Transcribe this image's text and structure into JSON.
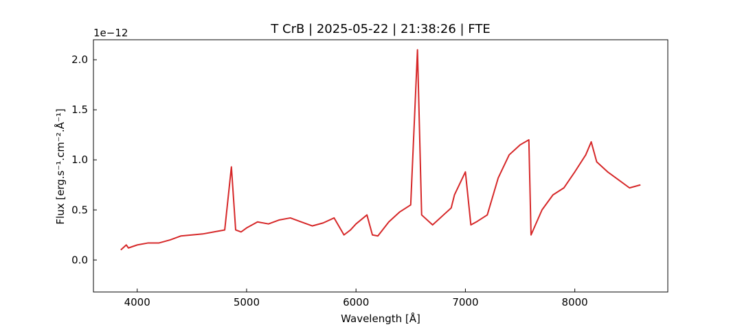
{
  "chart_data": {
    "type": "line",
    "title": "T CrB | 2025-05-22 | 21:38:26 | FTE",
    "xlabel": "Wavelength [Å]",
    "ylabel": "Flux [erg.s⁻¹.cm⁻².Å⁻¹]",
    "y_offset_label": "1e−12",
    "xlim": [
      3600,
      8850
    ],
    "ylim": [
      -3.2e-13,
      2.2e-12
    ],
    "x_ticks": [
      4000,
      5000,
      6000,
      7000,
      8000
    ],
    "x_tick_labels": [
      "4000",
      "5000",
      "6000",
      "7000",
      "8000"
    ],
    "y_ticks": [
      0.0,
      0.5,
      1.0,
      1.5,
      2.0
    ],
    "y_tick_labels": [
      "0.0",
      "0.5",
      "1.0",
      "1.5",
      "2.0"
    ],
    "grid": false,
    "legend": "none",
    "series": [
      {
        "color": "#d62728",
        "x": [
          3850,
          3900,
          3920,
          4000,
          4100,
          4200,
          4300,
          4400,
          4500,
          4600,
          4700,
          4800,
          4861,
          4900,
          4950,
          5000,
          5100,
          5200,
          5300,
          5400,
          5500,
          5600,
          5700,
          5800,
          5890,
          5950,
          6000,
          6100,
          6150,
          6200,
          6300,
          6400,
          6500,
          6562,
          6600,
          6700,
          6800,
          6870,
          6900,
          7000,
          7050,
          7100,
          7200,
          7300,
          7400,
          7500,
          7580,
          7600,
          7700,
          7800,
          7900,
          8000,
          8100,
          8150,
          8200,
          8300,
          8400,
          8500,
          8600
        ],
        "y": [
          1e-13,
          1.5e-13,
          1.2e-13,
          1.5e-13,
          1.7e-13,
          1.7e-13,
          2e-13,
          2.4e-13,
          2.5e-13,
          2.6e-13,
          2.8e-13,
          3e-13,
          9.3e-13,
          3e-13,
          2.8e-13,
          3.2e-13,
          3.8e-13,
          3.6e-13,
          4e-13,
          4.2e-13,
          3.8e-13,
          3.4e-13,
          3.7e-13,
          4.2e-13,
          2.5e-13,
          3e-13,
          3.6e-13,
          4.5e-13,
          2.5e-13,
          2.4e-13,
          3.8e-13,
          4.8e-13,
          5.5e-13,
          2.1e-12,
          4.5e-13,
          3.5e-13,
          4.5e-13,
          5.2e-13,
          6.5e-13,
          8.8e-13,
          3.5e-13,
          3.8e-13,
          4.5e-13,
          8.2e-13,
          1.05e-12,
          1.15e-12,
          1.2e-12,
          2.5e-13,
          5e-13,
          6.5e-13,
          7.2e-13,
          8.8e-13,
          1.05e-12,
          1.18e-12,
          9.8e-13,
          8.8e-13,
          8e-13,
          7.2e-13,
          7.5e-13
        ]
      }
    ]
  }
}
